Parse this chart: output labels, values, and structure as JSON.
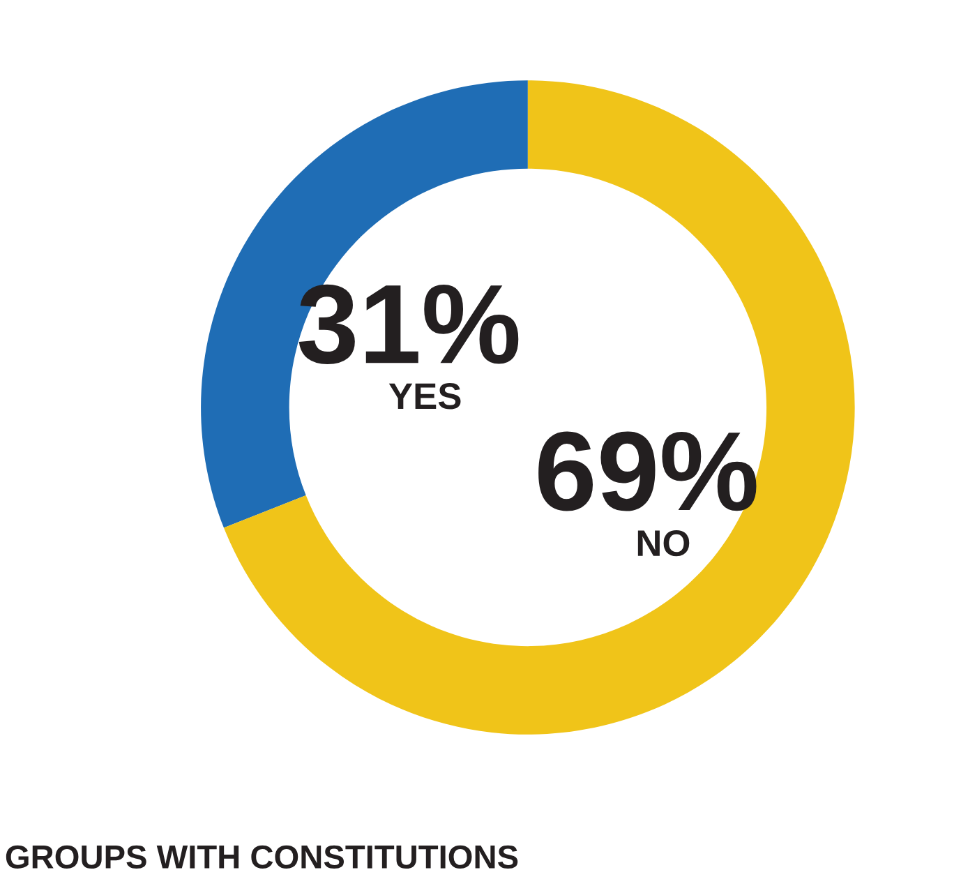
{
  "chart_data": {
    "type": "donut",
    "title": "GROUPS WITH CONSTITUTIONS",
    "categories": [
      "YES",
      "NO"
    ],
    "values": [
      31,
      69
    ],
    "colors": [
      "#1f6db5",
      "#f0c419"
    ],
    "value_labels": [
      "31%",
      "69%"
    ]
  }
}
